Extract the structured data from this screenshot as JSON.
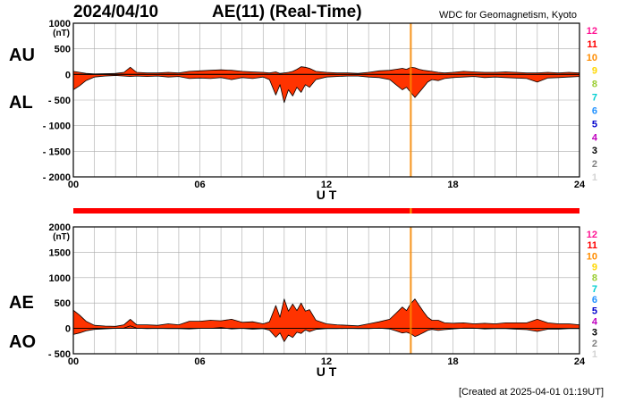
{
  "header": {
    "date": "2024/04/10",
    "index_title": "AE(11) (Real-Time)",
    "source": "WDC for Geomagnetism, Kyoto"
  },
  "footer": {
    "created": "[Created at 2025-04-01 01:19UT]"
  },
  "panel_labels": {
    "top_upper": "AU",
    "top_lower": "AL",
    "bottom_upper": "AE",
    "bottom_lower": "AO"
  },
  "station_count_legend": [
    {
      "label": "12",
      "color": "#ff1493"
    },
    {
      "label": "11",
      "color": "#ff0000"
    },
    {
      "label": "10",
      "color": "#ff8c00"
    },
    {
      "label": "9",
      "color": "#ffd700"
    },
    {
      "label": "8",
      "color": "#9acd32"
    },
    {
      "label": "7",
      "color": "#00ced1"
    },
    {
      "label": "6",
      "color": "#1e90ff"
    },
    {
      "label": "5",
      "color": "#0000cd"
    },
    {
      "label": "4",
      "color": "#c000c0"
    },
    {
      "label": "3",
      "color": "#000000"
    },
    {
      "label": "2",
      "color": "#808080"
    },
    {
      "label": "1",
      "color": "#d3d3d3"
    }
  ],
  "chart_data": [
    {
      "type": "area",
      "xlabel": "U T",
      "ylabel": "(nT)",
      "xlim": [
        0,
        24
      ],
      "ylim": [
        -2000,
        1000
      ],
      "xticks": [
        "00",
        "06",
        "12",
        "18",
        "24"
      ],
      "yticks": [
        "1000",
        "500",
        "0",
        "- 500",
        "- 1000",
        "- 1500",
        "- 2000"
      ],
      "fill_color": "#ff3300",
      "grid": true,
      "x": [
        0,
        0.3,
        0.6,
        1,
        1.5,
        2,
        2.4,
        2.7,
        3,
        3.5,
        4,
        4.5,
        5,
        5.5,
        6,
        6.5,
        7,
        7.5,
        8,
        8.5,
        9,
        9.3,
        9.6,
        9.8,
        10,
        10.2,
        10.4,
        10.6,
        10.8,
        11,
        11.2,
        11.5,
        12,
        12.5,
        13,
        13.5,
        14,
        14.5,
        15,
        15.3,
        15.6,
        15.8,
        16,
        16.2,
        16.4,
        16.6,
        16.8,
        17,
        17.3,
        17.6,
        18,
        18.5,
        19,
        19.5,
        20,
        20.5,
        21,
        21.5,
        22,
        22.5,
        23,
        23.5,
        24
      ],
      "series": [
        {
          "name": "AU",
          "values": [
            60,
            40,
            20,
            10,
            15,
            20,
            40,
            140,
            40,
            30,
            30,
            40,
            30,
            60,
            70,
            80,
            90,
            80,
            60,
            50,
            40,
            30,
            50,
            20,
            30,
            40,
            60,
            100,
            150,
            140,
            120,
            60,
            40,
            30,
            30,
            20,
            40,
            70,
            80,
            100,
            120,
            100,
            140,
            130,
            100,
            80,
            70,
            60,
            40,
            30,
            40,
            60,
            50,
            40,
            40,
            50,
            40,
            30,
            30,
            40,
            30,
            40,
            30
          ]
        },
        {
          "name": "AL",
          "values": [
            -300,
            -220,
            -120,
            -50,
            -30,
            -20,
            -30,
            -40,
            -30,
            -40,
            -30,
            -50,
            -40,
            -80,
            -70,
            -80,
            -60,
            -100,
            -60,
            -80,
            -50,
            -100,
            -400,
            -200,
            -550,
            -300,
            -420,
            -250,
            -350,
            -200,
            -250,
            -100,
            -50,
            -40,
            -30,
            -30,
            -50,
            -60,
            -100,
            -200,
            -300,
            -250,
            -350,
            -450,
            -350,
            -250,
            -150,
            -100,
            -120,
            -80,
            -60,
            -50,
            -40,
            -60,
            -50,
            -60,
            -70,
            -80,
            -150,
            -70,
            -60,
            -50,
            -40
          ]
        }
      ]
    },
    {
      "type": "area",
      "xlabel": "U T",
      "ylabel": "(nT)",
      "xlim": [
        0,
        24
      ],
      "ylim": [
        -500,
        2000
      ],
      "xticks": [
        "00",
        "06",
        "12",
        "18",
        "24"
      ],
      "yticks": [
        "2000",
        "1500",
        "1000",
        "500",
        "0",
        "- 500"
      ],
      "fill_color": "#ff3300",
      "grid": true,
      "x": [
        0,
        0.3,
        0.6,
        1,
        1.5,
        2,
        2.4,
        2.7,
        3,
        3.5,
        4,
        4.5,
        5,
        5.5,
        6,
        6.5,
        7,
        7.5,
        8,
        8.5,
        9,
        9.3,
        9.6,
        9.8,
        10,
        10.2,
        10.4,
        10.6,
        10.8,
        11,
        11.2,
        11.5,
        12,
        12.5,
        13,
        13.5,
        14,
        14.5,
        15,
        15.3,
        15.6,
        15.8,
        16,
        16.2,
        16.4,
        16.6,
        16.8,
        17,
        17.3,
        17.6,
        18,
        18.5,
        19,
        19.5,
        20,
        20.5,
        21,
        21.5,
        22,
        22.5,
        23,
        23.5,
        24
      ],
      "series": [
        {
          "name": "AE",
          "values": [
            360,
            260,
            140,
            60,
            45,
            40,
            70,
            180,
            70,
            70,
            60,
            90,
            70,
            140,
            140,
            160,
            150,
            180,
            120,
            130,
            90,
            130,
            450,
            220,
            580,
            340,
            480,
            350,
            500,
            340,
            370,
            160,
            90,
            70,
            60,
            50,
            90,
            130,
            180,
            300,
            420,
            350,
            490,
            580,
            450,
            330,
            220,
            160,
            160,
            110,
            100,
            110,
            90,
            100,
            90,
            110,
            110,
            110,
            180,
            110,
            90,
            90,
            70
          ]
        },
        {
          "name": "AO",
          "values": [
            -120,
            -90,
            -50,
            -20,
            -8,
            0,
            5,
            50,
            5,
            -5,
            0,
            -5,
            -5,
            -10,
            0,
            0,
            15,
            -10,
            0,
            -15,
            -5,
            -35,
            -175,
            -90,
            -260,
            -130,
            -180,
            -75,
            -100,
            -30,
            -65,
            -20,
            -5,
            -5,
            0,
            -5,
            -5,
            5,
            -10,
            -50,
            -90,
            -75,
            -105,
            -160,
            -125,
            -85,
            -40,
            -20,
            -40,
            -25,
            -10,
            5,
            5,
            -10,
            -5,
            -5,
            -15,
            -25,
            -60,
            -15,
            -15,
            -5,
            -5
          ]
        }
      ]
    }
  ],
  "station_bar": {
    "default_station_count": "11",
    "highlight": {
      "from": 15.95,
      "to": 16.05,
      "station_count": "10"
    }
  }
}
